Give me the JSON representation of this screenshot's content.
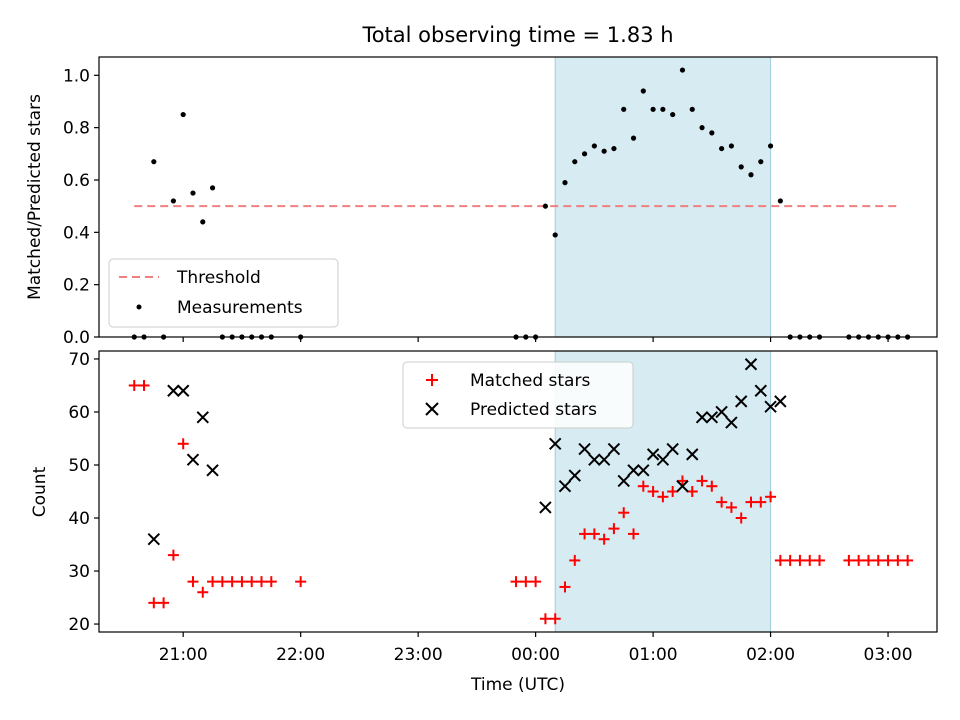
{
  "figure_title": "Total observing time = 1.83 h",
  "shading": {
    "x_start": "00:10",
    "x_end": "02:00",
    "color": "#add8e6"
  },
  "chart_data": [
    {
      "type": "scatter",
      "ylabel": "Matched/Predicted stars",
      "ylim": [
        0,
        1.07
      ],
      "yticks": [
        "0.0",
        "0.2",
        "0.4",
        "0.6",
        "0.8",
        "1.0"
      ],
      "legend": {
        "position": "lower-left",
        "entries": [
          "Threshold",
          "Measurements"
        ]
      },
      "threshold": {
        "name": "Threshold",
        "value": 0.5,
        "x_start": "20:35",
        "x_end": "03:05",
        "color": "#f08080",
        "style": "dashed"
      },
      "series": [
        {
          "name": "Measurements",
          "color": "#000000",
          "marker": "dot",
          "points": [
            [
              "20:35",
              0.0
            ],
            [
              "20:40",
              0.0
            ],
            [
              "20:45",
              0.67
            ],
            [
              "20:50",
              0.0
            ],
            [
              "20:55",
              0.52
            ],
            [
              "21:00",
              0.85
            ],
            [
              "21:05",
              0.55
            ],
            [
              "21:10",
              0.44
            ],
            [
              "21:15",
              0.57
            ],
            [
              "21:20",
              0.0
            ],
            [
              "21:25",
              0.0
            ],
            [
              "21:30",
              0.0
            ],
            [
              "21:35",
              0.0
            ],
            [
              "21:40",
              0.0
            ],
            [
              "21:45",
              0.0
            ],
            [
              "22:00",
              0.0
            ],
            [
              "23:50",
              0.0
            ],
            [
              "23:55",
              0.0
            ],
            [
              "00:00",
              0.0
            ],
            [
              "00:05",
              0.5
            ],
            [
              "00:10",
              0.39
            ],
            [
              "00:15",
              0.59
            ],
            [
              "00:20",
              0.67
            ],
            [
              "00:25",
              0.7
            ],
            [
              "00:30",
              0.73
            ],
            [
              "00:35",
              0.71
            ],
            [
              "00:40",
              0.72
            ],
            [
              "00:45",
              0.87
            ],
            [
              "00:50",
              0.76
            ],
            [
              "00:55",
              0.94
            ],
            [
              "01:00",
              0.87
            ],
            [
              "01:05",
              0.87
            ],
            [
              "01:10",
              0.85
            ],
            [
              "01:15",
              1.02
            ],
            [
              "01:20",
              0.87
            ],
            [
              "01:25",
              0.8
            ],
            [
              "01:30",
              0.78
            ],
            [
              "01:35",
              0.72
            ],
            [
              "01:40",
              0.73
            ],
            [
              "01:45",
              0.65
            ],
            [
              "01:50",
              0.62
            ],
            [
              "01:55",
              0.67
            ],
            [
              "02:00",
              0.73
            ],
            [
              "02:05",
              0.52
            ],
            [
              "02:10",
              0.0
            ],
            [
              "02:15",
              0.0
            ],
            [
              "02:20",
              0.0
            ],
            [
              "02:25",
              0.0
            ],
            [
              "02:40",
              0.0
            ],
            [
              "02:45",
              0.0
            ],
            [
              "02:50",
              0.0
            ],
            [
              "02:55",
              0.0
            ],
            [
              "03:00",
              0.0
            ],
            [
              "03:05",
              0.0
            ],
            [
              "03:10",
              0.0
            ]
          ]
        }
      ]
    },
    {
      "type": "scatter",
      "xlabel": "Time (UTC)",
      "ylabel": "Count",
      "xlim": [
        "20:17",
        "03:25"
      ],
      "ylim": [
        18.5,
        71.5
      ],
      "yticks": [
        "20",
        "30",
        "40",
        "50",
        "60",
        "70"
      ],
      "xticks": [
        "21:00",
        "22:00",
        "23:00",
        "00:00",
        "01:00",
        "02:00",
        "03:00"
      ],
      "legend": {
        "position": "upper-center",
        "entries": [
          "Matched stars",
          "Predicted stars"
        ]
      },
      "series": [
        {
          "name": "Matched stars",
          "color": "#ff0000",
          "marker": "plus",
          "points": [
            [
              "20:35",
              65
            ],
            [
              "20:40",
              65
            ],
            [
              "20:45",
              24
            ],
            [
              "20:50",
              24
            ],
            [
              "20:55",
              33
            ],
            [
              "21:00",
              54
            ],
            [
              "21:05",
              28
            ],
            [
              "21:10",
              26
            ],
            [
              "21:15",
              28
            ],
            [
              "21:20",
              28
            ],
            [
              "21:25",
              28
            ],
            [
              "21:30",
              28
            ],
            [
              "21:35",
              28
            ],
            [
              "21:40",
              28
            ],
            [
              "21:45",
              28
            ],
            [
              "22:00",
              28
            ],
            [
              "23:50",
              28
            ],
            [
              "23:55",
              28
            ],
            [
              "00:00",
              28
            ],
            [
              "00:05",
              21
            ],
            [
              "00:10",
              21
            ],
            [
              "00:15",
              27
            ],
            [
              "00:20",
              32
            ],
            [
              "00:25",
              37
            ],
            [
              "00:30",
              37
            ],
            [
              "00:35",
              36
            ],
            [
              "00:40",
              38
            ],
            [
              "00:45",
              41
            ],
            [
              "00:50",
              37
            ],
            [
              "00:55",
              46
            ],
            [
              "01:00",
              45
            ],
            [
              "01:05",
              44
            ],
            [
              "01:10",
              45
            ],
            [
              "01:15",
              47
            ],
            [
              "01:20",
              45
            ],
            [
              "01:25",
              47
            ],
            [
              "01:30",
              46
            ],
            [
              "01:35",
              43
            ],
            [
              "01:40",
              42
            ],
            [
              "01:45",
              40
            ],
            [
              "01:50",
              43
            ],
            [
              "01:55",
              43
            ],
            [
              "02:00",
              44
            ],
            [
              "02:05",
              32
            ],
            [
              "02:10",
              32
            ],
            [
              "02:15",
              32
            ],
            [
              "02:20",
              32
            ],
            [
              "02:25",
              32
            ],
            [
              "02:40",
              32
            ],
            [
              "02:45",
              32
            ],
            [
              "02:50",
              32
            ],
            [
              "02:55",
              32
            ],
            [
              "03:00",
              32
            ],
            [
              "03:05",
              32
            ],
            [
              "03:10",
              32
            ]
          ]
        },
        {
          "name": "Predicted stars",
          "color": "#000000",
          "marker": "x",
          "points": [
            [
              "20:45",
              36
            ],
            [
              "20:55",
              64
            ],
            [
              "21:00",
              64
            ],
            [
              "21:05",
              51
            ],
            [
              "21:10",
              59
            ],
            [
              "21:15",
              49
            ],
            [
              "00:05",
              42
            ],
            [
              "00:10",
              54
            ],
            [
              "00:15",
              46
            ],
            [
              "00:20",
              48
            ],
            [
              "00:25",
              53
            ],
            [
              "00:30",
              51
            ],
            [
              "00:35",
              51
            ],
            [
              "00:40",
              53
            ],
            [
              "00:45",
              47
            ],
            [
              "00:50",
              49
            ],
            [
              "00:55",
              49
            ],
            [
              "01:00",
              52
            ],
            [
              "01:05",
              51
            ],
            [
              "01:10",
              53
            ],
            [
              "01:15",
              46
            ],
            [
              "01:20",
              52
            ],
            [
              "01:25",
              59
            ],
            [
              "01:30",
              59
            ],
            [
              "01:35",
              60
            ],
            [
              "01:40",
              58
            ],
            [
              "01:45",
              62
            ],
            [
              "01:50",
              69
            ],
            [
              "01:55",
              64
            ],
            [
              "02:00",
              61
            ],
            [
              "02:05",
              62
            ]
          ]
        }
      ]
    }
  ]
}
